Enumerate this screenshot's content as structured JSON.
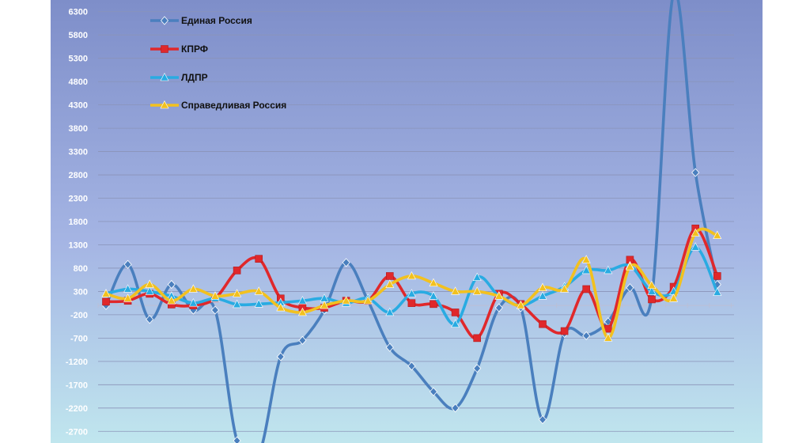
{
  "chart_data": {
    "type": "line",
    "title": "",
    "xlabel": "",
    "ylabel": "",
    "ylim": [
      -2950,
      6550
    ],
    "y_ticks": [
      "6300",
      "5800",
      "5300",
      "4800",
      "4300",
      "3800",
      "3300",
      "2800",
      "2300",
      "1800",
      "1300",
      "800",
      "300",
      "-200",
      "-700",
      "-1200",
      "-1700",
      "-2200",
      "-2700"
    ],
    "grid": true,
    "legend_position": "top-left",
    "series": [
      {
        "name": "Единая Россия",
        "color": "#4a7fbe",
        "marker": "diamond",
        "values": [
          0,
          880,
          -300,
          450,
          -100,
          -100,
          -2900,
          -3200,
          -1100,
          -750,
          -100,
          920,
          100,
          -900,
          -1300,
          -1850,
          -2200,
          -1350,
          -50,
          -50,
          -2450,
          -600,
          -650,
          -350,
          380,
          200,
          6700,
          2850,
          450
        ]
      },
      {
        "name": "КПРФ",
        "color": "#e0282b",
        "marker": "square",
        "values": [
          80,
          100,
          250,
          20,
          0,
          150,
          750,
          1000,
          150,
          -50,
          -50,
          100,
          100,
          630,
          50,
          30,
          -150,
          -700,
          250,
          30,
          -400,
          -550,
          350,
          -500,
          980,
          130,
          400,
          1650,
          630
        ]
      },
      {
        "name": "ЛДПР",
        "color": "#29abe2",
        "marker": "triangle",
        "values": [
          250,
          350,
          300,
          200,
          50,
          150,
          20,
          30,
          60,
          100,
          150,
          50,
          150,
          -150,
          250,
          200,
          -400,
          600,
          200,
          0,
          200,
          400,
          750,
          750,
          850,
          300,
          300,
          1250,
          280
        ]
      },
      {
        "name": "Справедливая Россия",
        "color": "#f2c11f",
        "marker": "triangle",
        "values": [
          250,
          150,
          450,
          100,
          350,
          200,
          250,
          300,
          -50,
          -150,
          0,
          100,
          100,
          450,
          630,
          480,
          300,
          300,
          200,
          0,
          380,
          350,
          980,
          -700,
          830,
          430,
          150,
          1550,
          1500
        ]
      }
    ]
  }
}
